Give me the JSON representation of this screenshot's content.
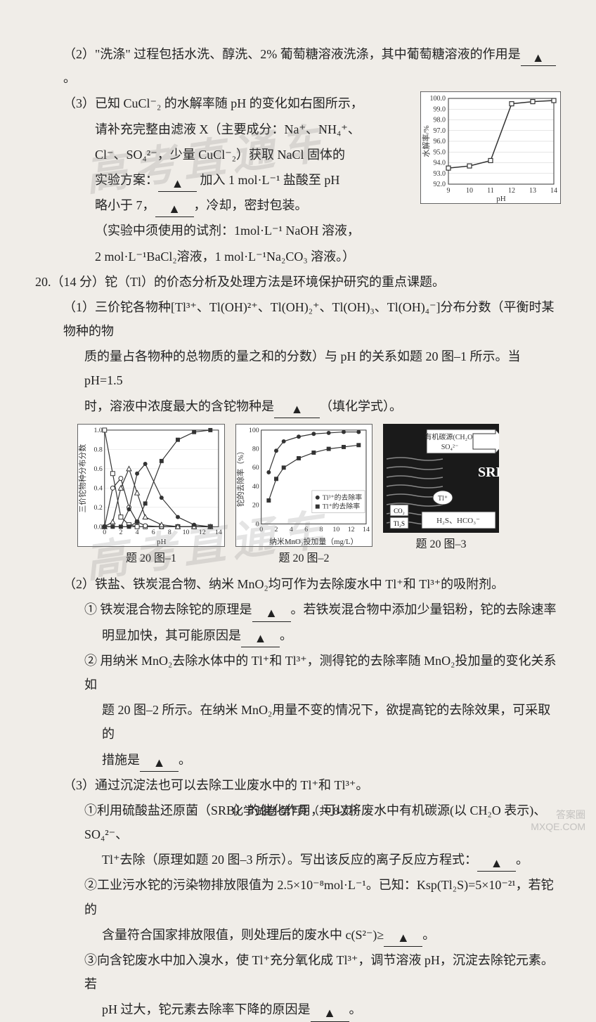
{
  "watermarks": {
    "wm1": "高考直通车",
    "wm2": "高考直通车",
    "corner1": "答案圈",
    "corner2": "MXQE.COM"
  },
  "q2": {
    "text_a": "（2）\"洗涤\" 过程包括水洗、醇洗、2% 葡萄糖溶液洗涤，其中葡萄糖溶液的作用是",
    "blank1": "▲",
    "text_b": "。"
  },
  "q3": {
    "line1": "（3）已知 CuCl⁻₂ 的水解率随 pH 的变化如右图所示，",
    "line2": "请补充完整由滤液 X（主要成分：Na⁺、NH₄⁺、",
    "line3": "Cl⁻、SO₄²⁻，少量 CuCl⁻₂）获取 NaCl 固体的",
    "line4a": "实验方案：",
    "blank1": "▲",
    "line4b": "加入 1 mol·L⁻¹ 盐酸至 pH",
    "line5a": "略小于 7，",
    "blank2": "▲",
    "line5b": "，冷却，密封包装。",
    "line6": "（实验中须使用的试剂：1mol·L⁻¹ NaOH 溶液，",
    "line7": "2 mol·L⁻¹BaCl₂溶液，1 mol·L⁻¹Na₂CO₃ 溶液。）"
  },
  "chart1": {
    "xlabel": "pH",
    "ylabel": "水解率/%",
    "xlim": [
      9,
      14
    ],
    "xtick_step": 1,
    "ylim": [
      92,
      100
    ],
    "ytick_step": 1,
    "points_x": [
      9,
      10,
      11,
      12,
      13,
      14
    ],
    "points_y": [
      93.5,
      93.7,
      94.2,
      99.5,
      99.7,
      99.8
    ],
    "line_color": "#333333",
    "marker": "square-open",
    "marker_size": 6,
    "background": "#ffffff"
  },
  "q20": {
    "header": "20.（14 分）铊（Tl）的价态分析及处理方法是环境保护研究的重点课题。",
    "sub1_a": "（1）三价铊各物种[Tl³⁺、Tl(OH)²⁺、Tl(OH)₂⁺、Tl(OH)₃、Tl(OH)₄⁻]分布分数（平衡时某物种的物",
    "sub1_b": "质的量占各物种的总物质的量之和的分数）与 pH 的关系如题 20 图–1 所示。当 pH=1.5",
    "sub1_c_a": "时，溶液中浓度最大的含铊物种是",
    "sub1_blank": "▲",
    "sub1_c_b": "（填化学式）。",
    "sub2_header": "（2）铁盐、铁炭混合物、纳米 MnO₂均可作为去除废水中 Tl⁺和 Tl³⁺的吸附剂。",
    "sub2_1a": "① 铁炭混合物去除铊的原理是",
    "sub2_1blank1": "▲",
    "sub2_1b": "。若铁炭混合物中添加少量铝粉，铊的去除速率",
    "sub2_1c": "明显加快，其可能原因是",
    "sub2_1blank2": "▲",
    "sub2_1d": "。",
    "sub2_2a": "② 用纳米 MnO₂去除水体中的 Tl⁺和 Tl³⁺，测得铊的去除率随 MnO₂投加量的变化关系如",
    "sub2_2b": "题 20 图–2 所示。在纳米 MnO₂用量不变的情况下，欲提高铊的去除效果，可采取的",
    "sub2_2c": "措施是",
    "sub2_2blank": "▲",
    "sub2_2d": "。",
    "sub3_header": "（3）通过沉淀法也可以去除工业废水中的 Tl⁺和 Tl³⁺。",
    "sub3_1a": "①利用硫酸盐还原菌（SRB）的催化作用，可以将废水中有机碳源(以 CH₂O 表示)、SO₄²⁻、",
    "sub3_1b": "Tl⁺去除（原理如题 20 图–3 所示）。写出该反应的离子反应方程式：",
    "sub3_1blank": "▲",
    "sub3_1c": "。",
    "sub3_2a": "②工业污水铊的污染物排放限值为 2.5×10⁻⁸mol·L⁻¹。已知：Ksp(Tl₂S)=5×10⁻²¹，若铊的",
    "sub3_2b": "含量符合国家排放限值，则处理后的废水中 c(S²⁻)≥",
    "sub3_2blank": "▲",
    "sub3_2c": "。",
    "sub3_3a": "③向含铊废水中加入溴水，使 Tl⁺充分氧化成 Tl³⁺，调节溶液 pH，沉淀去除铊元素。若",
    "sub3_3b": "pH 过大，铊元素去除率下降的原因是",
    "sub3_3blank": "▲",
    "sub3_3c": "。"
  },
  "chart_labels": {
    "c1": "题 20 图–1",
    "c2": "题 20 图–2",
    "c3": "题 20 图–3"
  },
  "chart2": {
    "type": "line-multi",
    "xlabel": "pH",
    "ylabel": "三价铊物种分布分数",
    "xlim": [
      0,
      14
    ],
    "xtick_step": 2,
    "ylim": [
      0,
      1.0
    ],
    "ytick_step": 0.2,
    "series": [
      {
        "marker": "square-open",
        "color": "#333",
        "x": [
          0,
          1,
          2,
          3,
          4,
          5,
          7,
          9,
          11,
          13
        ],
        "y": [
          1.0,
          0.55,
          0.1,
          0.02,
          0.0,
          0,
          0,
          0,
          0,
          0
        ]
      },
      {
        "marker": "circle-open",
        "color": "#333",
        "x": [
          0,
          1,
          2,
          3,
          4,
          5,
          7,
          9,
          11,
          13
        ],
        "y": [
          0,
          0.4,
          0.5,
          0.2,
          0.05,
          0.01,
          0,
          0,
          0,
          0
        ]
      },
      {
        "marker": "triangle-open",
        "color": "#333",
        "x": [
          0,
          1,
          2,
          3,
          4,
          5,
          7,
          9,
          11,
          13
        ],
        "y": [
          0,
          0.05,
          0.4,
          0.6,
          0.35,
          0.1,
          0.02,
          0,
          0,
          0
        ]
      },
      {
        "marker": "circle-filled",
        "color": "#333",
        "x": [
          0,
          1,
          2,
          3,
          4,
          5,
          7,
          9,
          11,
          13
        ],
        "y": [
          0,
          0,
          0,
          0.18,
          0.55,
          0.65,
          0.3,
          0.1,
          0.02,
          0
        ]
      },
      {
        "marker": "square-filled",
        "color": "#333",
        "x": [
          0,
          1,
          2,
          3,
          4,
          5,
          7,
          9,
          11,
          13
        ],
        "y": [
          0,
          0,
          0,
          0,
          0.05,
          0.24,
          0.68,
          0.9,
          0.98,
          1.0
        ]
      }
    ]
  },
  "chart3": {
    "type": "line-multi",
    "xlabel": "纳米MnO₂投加量（mg/L）",
    "ylabel": "铊的去除率（%）",
    "xlim": [
      0,
      14
    ],
    "xtick_step": 2,
    "ylim": [
      0,
      100
    ],
    "ytick_step": 20,
    "legend": [
      "Tl³⁺的去除率",
      "Tl⁺的去除率"
    ],
    "series": [
      {
        "marker": "circle-filled",
        "color": "#333",
        "x": [
          1,
          2,
          3,
          5,
          7,
          9,
          11,
          13
        ],
        "y": [
          55,
          78,
          88,
          93,
          96,
          97,
          98,
          98
        ]
      },
      {
        "marker": "square-filled",
        "color": "#333",
        "x": [
          1,
          2,
          3,
          5,
          7,
          9,
          11,
          13
        ],
        "y": [
          25,
          48,
          60,
          70,
          76,
          80,
          82,
          84
        ]
      }
    ]
  },
  "chart4": {
    "type": "diagram",
    "label_top": "有机碳源(CH₂O)",
    "label_top2": "SO₄²⁻",
    "label_srb": "SRB",
    "label_tl": "Tl⁺",
    "label_co2": "CO₂",
    "label_tls": "Tl₂S",
    "label_bottom": "H₂S、HCO₃⁻",
    "bg_color": "#1a1a1a",
    "box_color": "#ffffff"
  },
  "footer": "化学试卷  第7页（共 8 页）"
}
